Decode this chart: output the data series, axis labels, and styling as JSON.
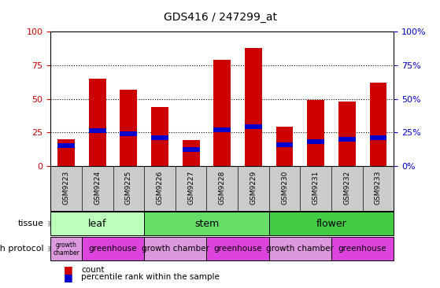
{
  "title": "GDS416 / 247299_at",
  "samples": [
    "GSM9223",
    "GSM9224",
    "GSM9225",
    "GSM9226",
    "GSM9227",
    "GSM9228",
    "GSM9229",
    "GSM9230",
    "GSM9231",
    "GSM9232",
    "GSM9233"
  ],
  "count_values": [
    20,
    65,
    57,
    44,
    19,
    79,
    88,
    29,
    49,
    48,
    62
  ],
  "percentile_values": [
    15,
    26,
    24,
    21,
    12,
    27,
    29,
    16,
    18,
    20,
    21
  ],
  "ylim": [
    0,
    100
  ],
  "y_ticks": [
    0,
    25,
    50,
    75,
    100
  ],
  "bar_color": "#cc0000",
  "pct_color": "#0000cc",
  "tissue_groups": [
    {
      "label": "leaf",
      "start": 0,
      "end": 3,
      "color": "#bbffbb"
    },
    {
      "label": "stem",
      "start": 3,
      "end": 7,
      "color": "#66dd66"
    },
    {
      "label": "flower",
      "start": 7,
      "end": 11,
      "color": "#44cc44"
    }
  ],
  "protocol_groups": [
    {
      "label": "growth\nchamber",
      "start": 0,
      "end": 1,
      "color": "#dd99dd"
    },
    {
      "label": "greenhouse",
      "start": 1,
      "end": 3,
      "color": "#dd44dd"
    },
    {
      "label": "growth chamber",
      "start": 3,
      "end": 5,
      "color": "#dd99dd"
    },
    {
      "label": "greenhouse",
      "start": 5,
      "end": 7,
      "color": "#dd44dd"
    },
    {
      "label": "growth chamber",
      "start": 7,
      "end": 9,
      "color": "#dd99dd"
    },
    {
      "label": "greenhouse",
      "start": 9,
      "end": 11,
      "color": "#dd44dd"
    }
  ],
  "tissue_label": "tissue",
  "protocol_label": "growth protocol",
  "legend_count": "count",
  "legend_pct": "percentile rank within the sample",
  "plot_bg": "#ffffff",
  "axes_bg": "#ffffff",
  "tick_color_left": "#cc0000",
  "tick_color_right": "#0000cc",
  "bar_width": 0.55,
  "blue_marker_size": 5.5
}
